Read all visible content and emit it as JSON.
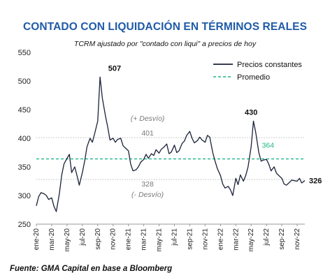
{
  "chart_data": {
    "type": "line",
    "title": "CONTADO CON LIQUIDACIÓN EN TÉRMINOS REALES",
    "subtitle": "TCRM ajustado por \"contado con liqui\" a precios de hoy",
    "source": "Fuente: GMA Capital en base a Bloomberg",
    "ylim": [
      250,
      550
    ],
    "yticks": [
      250,
      300,
      350,
      400,
      450,
      500,
      550
    ],
    "xticks": [
      "ene-20",
      "mar-20",
      "may-20",
      "jul-20",
      "sep-20",
      "nov-20",
      "ene-21",
      "mar-21",
      "may-21",
      "jul-21",
      "sep-21",
      "nov-21",
      "ene-22",
      "mar-22",
      "may-22",
      "jul-22",
      "sep-22",
      "nov-22"
    ],
    "series": [
      {
        "name": "Precios constantes",
        "color": "#1a2238",
        "x_month_index": [
          0,
          0.3,
          0.6,
          1,
          1.3,
          1.6,
          2,
          2.3,
          2.6,
          3,
          3.3,
          3.6,
          4,
          4.3,
          4.6,
          5,
          5.3,
          5.6,
          6,
          6.3,
          6.6,
          7,
          7.3,
          7.6,
          8,
          8.3,
          8.6,
          9,
          9.3,
          9.6,
          10,
          10.3,
          10.6,
          11,
          11.3,
          11.6,
          12,
          12.3,
          12.6,
          13,
          13.3,
          13.6,
          14,
          14.3,
          14.6,
          15,
          15.3,
          15.6,
          16,
          16.3,
          16.6,
          17,
          17.3,
          17.6,
          18,
          18.3,
          18.6,
          19,
          19.3,
          19.6,
          20,
          20.3,
          20.6,
          21,
          21.3,
          21.6,
          22,
          22.3,
          22.6,
          23,
          23.3,
          23.6,
          24,
          24.3,
          24.6,
          25,
          25.3,
          25.6,
          26,
          26.3,
          26.6,
          27,
          27.3,
          27.6,
          28,
          28.3,
          28.6,
          29,
          29.3,
          29.6,
          30,
          30.3,
          30.6,
          31,
          31.3,
          31.6,
          32,
          32.3,
          32.6,
          33,
          33.3,
          33.6,
          34,
          34.3,
          34.6,
          35
        ],
        "values": [
          282,
          298,
          305,
          303,
          300,
          293,
          296,
          281,
          272,
          303,
          335,
          355,
          365,
          372,
          340,
          350,
          335,
          318,
          340,
          360,
          385,
          400,
          393,
          408,
          430,
          507,
          470,
          440,
          420,
          397,
          400,
          393,
          398,
          400,
          387,
          383,
          378,
          355,
          343,
          345,
          350,
          358,
          363,
          372,
          365,
          373,
          370,
          380,
          374,
          381,
          384,
          390,
          373,
          376,
          388,
          375,
          378,
          391,
          395,
          405,
          412,
          400,
          392,
          396,
          402,
          397,
          393,
          405,
          402,
          375,
          360,
          347,
          335,
          320,
          313,
          316,
          310,
          300,
          330,
          319,
          336,
          325,
          335,
          350,
          385,
          430,
          410,
          375,
          360,
          362,
          363,
          355,
          343,
          350,
          339,
          335,
          330,
          320,
          318,
          323,
          327,
          326,
          325,
          330,
          322,
          326,
          326
        ]
      },
      {
        "name": "Promedio",
        "color": "#1fb58a",
        "value": 364
      }
    ],
    "reference_lines": [
      {
        "value": 401,
        "label": "(+ Desvío)"
      },
      {
        "value": 328,
        "label": "(- Desvío)"
      }
    ],
    "annotations": [
      {
        "text": "507"
      },
      {
        "text": "430"
      },
      {
        "text": "401"
      },
      {
        "text": "328"
      },
      {
        "text": "364"
      },
      {
        "text": "326"
      }
    ],
    "legend_position": "top-right",
    "grid": false
  }
}
